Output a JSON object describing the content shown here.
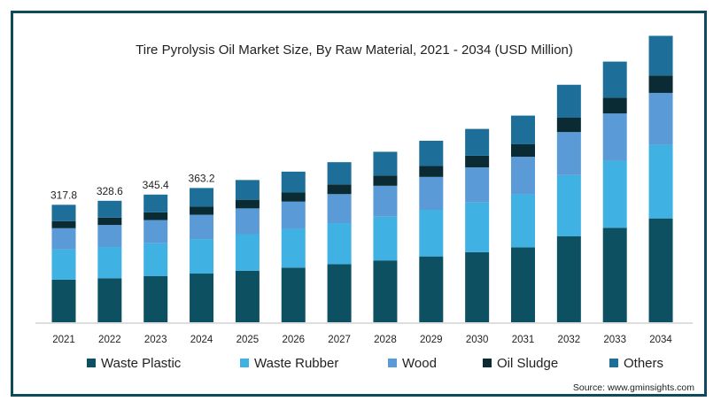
{
  "chart_data": {
    "type": "bar",
    "stacked": true,
    "title": "Tire Pyrolysis Oil Market Size, By Raw Material, 2021 - 2034 (USD Million)",
    "categories": [
      "2021",
      "2022",
      "2023",
      "2024",
      "2025",
      "2026",
      "2027",
      "2028",
      "2029",
      "2030",
      "2031",
      "2032",
      "2033",
      "2034"
    ],
    "series": [
      {
        "name": "Waste Plastic",
        "color": "#0c5062",
        "values": [
          115.2,
          119.1,
          125.2,
          131.7,
          139.5,
          147.8,
          157.0,
          167.2,
          178.1,
          189.7,
          202.7,
          233.0,
          255.7,
          281.0
        ]
      },
      {
        "name": "Waste Rubber",
        "color": "#3fb1e3",
        "values": [
          81.6,
          84.4,
          88.7,
          93.3,
          98.8,
          104.7,
          111.2,
          118.4,
          126.1,
          134.4,
          143.6,
          165.0,
          181.2,
          199.0
        ]
      },
      {
        "name": "Wood",
        "color": "#5a9ad6",
        "values": [
          57.6,
          59.6,
          62.6,
          65.8,
          69.8,
          73.9,
          78.5,
          83.6,
          89.0,
          94.9,
          101.4,
          116.5,
          127.9,
          140.5
        ]
      },
      {
        "name": "Oil Sludge",
        "color": "#0a2b33",
        "values": [
          19.2,
          19.9,
          20.9,
          21.9,
          23.3,
          24.6,
          26.2,
          27.9,
          29.7,
          31.6,
          33.8,
          38.8,
          42.6,
          46.9
        ]
      },
      {
        "name": "Others",
        "color": "#1d6f99",
        "values": [
          44.2,
          45.6,
          48.0,
          50.5,
          53.4,
          56.5,
          60.2,
          64.1,
          68.2,
          72.5,
          77.6,
          89.2,
          97.8,
          107.5
        ]
      }
    ],
    "data_labels": [
      {
        "category": "2021",
        "text": "317.8"
      },
      {
        "category": "2022",
        "text": "328.6"
      },
      {
        "category": "2023",
        "text": "345.4"
      },
      {
        "category": "2024",
        "text": "363.2"
      }
    ],
    "ylim": [
      0,
      800
    ],
    "grid": false,
    "legend_position": "bottom"
  },
  "source": "Source: www.gminsights.com"
}
